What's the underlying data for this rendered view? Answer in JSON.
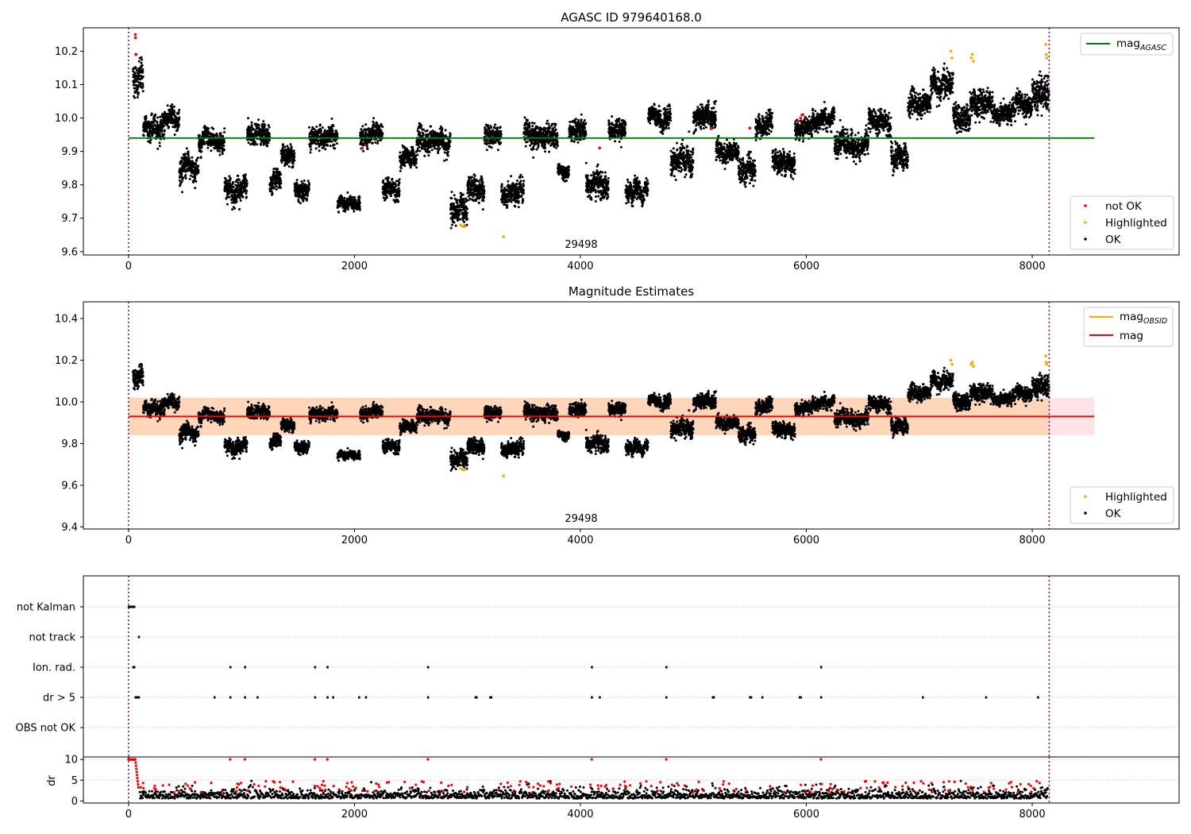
{
  "chart_data": [
    {
      "type": "scatter",
      "panel": "top",
      "title": "AGASC ID 979640168.0",
      "annotation": "29498",
      "xlim": [
        -400,
        9300
      ],
      "ylim": [
        9.59,
        10.27
      ],
      "x_ticks": [
        0,
        2000,
        4000,
        6000,
        8000
      ],
      "y_ticks": [
        9.6,
        9.7,
        9.8,
        9.9,
        10.0,
        10.1,
        10.2
      ],
      "vlines": [
        0,
        8150
      ],
      "hline": {
        "name": "mag",
        "sub": "AGASC",
        "value": 9.94,
        "x_range": [
          0,
          8550
        ],
        "color": "#008000"
      },
      "legend_lines": [
        {
          "name": "mag",
          "sub": "AGASC",
          "color": "#008000"
        }
      ],
      "legend_points": [
        {
          "label": "not OK",
          "color": "#ff0000"
        },
        {
          "label": "Highlighted",
          "color": "#ffa500"
        },
        {
          "label": "OK",
          "color": "#000000"
        }
      ],
      "segments": [
        [
          40,
          130,
          10.12,
          0.05
        ],
        [
          130,
          320,
          9.97,
          0.035
        ],
        [
          320,
          450,
          10.0,
          0.03
        ],
        [
          450,
          620,
          9.85,
          0.04
        ],
        [
          620,
          850,
          9.93,
          0.03
        ],
        [
          850,
          1050,
          9.79,
          0.035
        ],
        [
          1050,
          1250,
          9.95,
          0.03
        ],
        [
          1250,
          1350,
          9.8,
          0.03
        ],
        [
          1350,
          1470,
          9.89,
          0.03
        ],
        [
          1470,
          1600,
          9.79,
          0.03
        ],
        [
          1600,
          1850,
          9.94,
          0.03
        ],
        [
          1850,
          2050,
          9.74,
          0.02
        ],
        [
          2050,
          2250,
          9.95,
          0.03
        ],
        [
          2250,
          2400,
          9.79,
          0.03
        ],
        [
          2400,
          2550,
          9.88,
          0.03
        ],
        [
          2550,
          2850,
          9.93,
          0.035
        ],
        [
          2850,
          3000,
          9.72,
          0.04
        ],
        [
          3000,
          3150,
          9.79,
          0.04
        ],
        [
          3150,
          3300,
          9.95,
          0.03
        ],
        [
          3300,
          3500,
          9.77,
          0.035
        ],
        [
          3500,
          3800,
          9.95,
          0.035
        ],
        [
          3800,
          3900,
          9.84,
          0.02
        ],
        [
          3900,
          4050,
          9.96,
          0.03
        ],
        [
          4050,
          4250,
          9.8,
          0.04
        ],
        [
          4250,
          4400,
          9.97,
          0.03
        ],
        [
          4400,
          4600,
          9.78,
          0.03
        ],
        [
          4600,
          4800,
          10.0,
          0.03
        ],
        [
          4800,
          5000,
          9.87,
          0.04
        ],
        [
          5000,
          5200,
          10.0,
          0.035
        ],
        [
          5200,
          5400,
          9.9,
          0.03
        ],
        [
          5400,
          5550,
          9.85,
          0.04
        ],
        [
          5550,
          5700,
          9.97,
          0.035
        ],
        [
          5700,
          5900,
          9.87,
          0.035
        ],
        [
          5900,
          6050,
          9.97,
          0.03
        ],
        [
          6050,
          6250,
          9.99,
          0.03
        ],
        [
          6250,
          6400,
          9.92,
          0.04
        ],
        [
          6400,
          6550,
          9.92,
          0.035
        ],
        [
          6550,
          6750,
          9.99,
          0.035
        ],
        [
          6750,
          6900,
          9.88,
          0.04
        ],
        [
          6900,
          7100,
          10.04,
          0.035
        ],
        [
          7100,
          7300,
          10.1,
          0.04
        ],
        [
          7300,
          7450,
          10.0,
          0.04
        ],
        [
          7450,
          7650,
          10.05,
          0.04
        ],
        [
          7650,
          7850,
          10.01,
          0.03
        ],
        [
          7850,
          8000,
          10.04,
          0.03
        ],
        [
          8000,
          8150,
          10.08,
          0.05
        ]
      ],
      "not_ok_points": [
        [
          60,
          10.25
        ],
        [
          62,
          10.24
        ],
        [
          64,
          10.19
        ],
        [
          66,
          10.19
        ],
        [
          5930,
          9.99
        ],
        [
          5950,
          10.0
        ],
        [
          5970,
          10.01
        ],
        [
          2070,
          9.91
        ],
        [
          4170,
          9.91
        ],
        [
          5500,
          9.97
        ],
        [
          5160,
          9.97
        ]
      ],
      "highlighted_points": [
        [
          2940,
          9.68
        ],
        [
          2960,
          9.675
        ],
        [
          2980,
          9.675
        ],
        [
          3320,
          9.645
        ],
        [
          7280,
          10.2
        ],
        [
          7290,
          10.18
        ],
        [
          7460,
          10.18
        ],
        [
          7470,
          10.19
        ],
        [
          7480,
          10.17
        ],
        [
          8120,
          10.22
        ],
        [
          8125,
          10.19
        ],
        [
          8130,
          10.18
        ]
      ]
    },
    {
      "type": "scatter",
      "panel": "middle",
      "title": "Magnitude Estimates",
      "annotation": "29498",
      "xlim": [
        -400,
        9300
      ],
      "ylim": [
        9.39,
        10.48
      ],
      "x_ticks": [
        0,
        2000,
        4000,
        6000,
        8000
      ],
      "y_ticks": [
        9.4,
        9.6,
        9.8,
        10.0,
        10.2,
        10.4
      ],
      "vlines": [
        0,
        8150
      ],
      "hline": {
        "name": "mag",
        "value": 9.93,
        "x_range": [
          0,
          8550
        ],
        "color": "#ff0000"
      },
      "band_mag": {
        "low": 9.84,
        "high": 10.02,
        "x_range": [
          0,
          8550
        ],
        "color": "#ffc0cb"
      },
      "band_obsid": {
        "low": 9.84,
        "high": 10.02,
        "x_range": [
          0,
          8150
        ],
        "color": "#ffa500"
      },
      "legend_lines": [
        {
          "name": "mag",
          "sub": "OBSID",
          "color": "#ffa500"
        },
        {
          "name": "mag",
          "sub": "",
          "color": "#ff0000"
        }
      ],
      "legend_points": [
        {
          "label": "Highlighted",
          "color": "#ffa500"
        },
        {
          "label": "OK",
          "color": "#000000"
        }
      ]
    },
    {
      "type": "event",
      "panel": "bottom-flags",
      "categories": [
        "not Kalman",
        "not track",
        "Ion. rad.",
        "dr > 5",
        "OBS not OK"
      ],
      "vlines": [
        0,
        8150
      ],
      "events": {
        "not Kalman": [
          0,
          10,
          20,
          30,
          40,
          50
        ],
        "not track": [
          90
        ],
        "Ion. rad.": [
          40,
          50,
          900,
          1030,
          1650,
          1760,
          2650,
          4100,
          4760,
          6130
        ],
        "dr > 5": [
          60,
          70,
          80,
          90,
          760,
          900,
          1030,
          1140,
          1650,
          1760,
          1810,
          2040,
          2100,
          2650,
          3070,
          3080,
          3200,
          3210,
          4100,
          4170,
          4760,
          5170,
          5180,
          5500,
          5510,
          5610,
          5940,
          5950,
          6130,
          7030,
          7590,
          8050
        ],
        "OBS not OK": []
      }
    },
    {
      "type": "scatter",
      "panel": "bottom-dr",
      "ylabel": "dr",
      "xlim": [
        -400,
        9300
      ],
      "ylim": [
        -0.5,
        10.6
      ],
      "x_ticks": [
        0,
        2000,
        4000,
        6000,
        8000
      ],
      "y_ticks": [
        0,
        5,
        10
      ],
      "threshold": 5,
      "vlines": [
        0,
        8150
      ]
    }
  ]
}
